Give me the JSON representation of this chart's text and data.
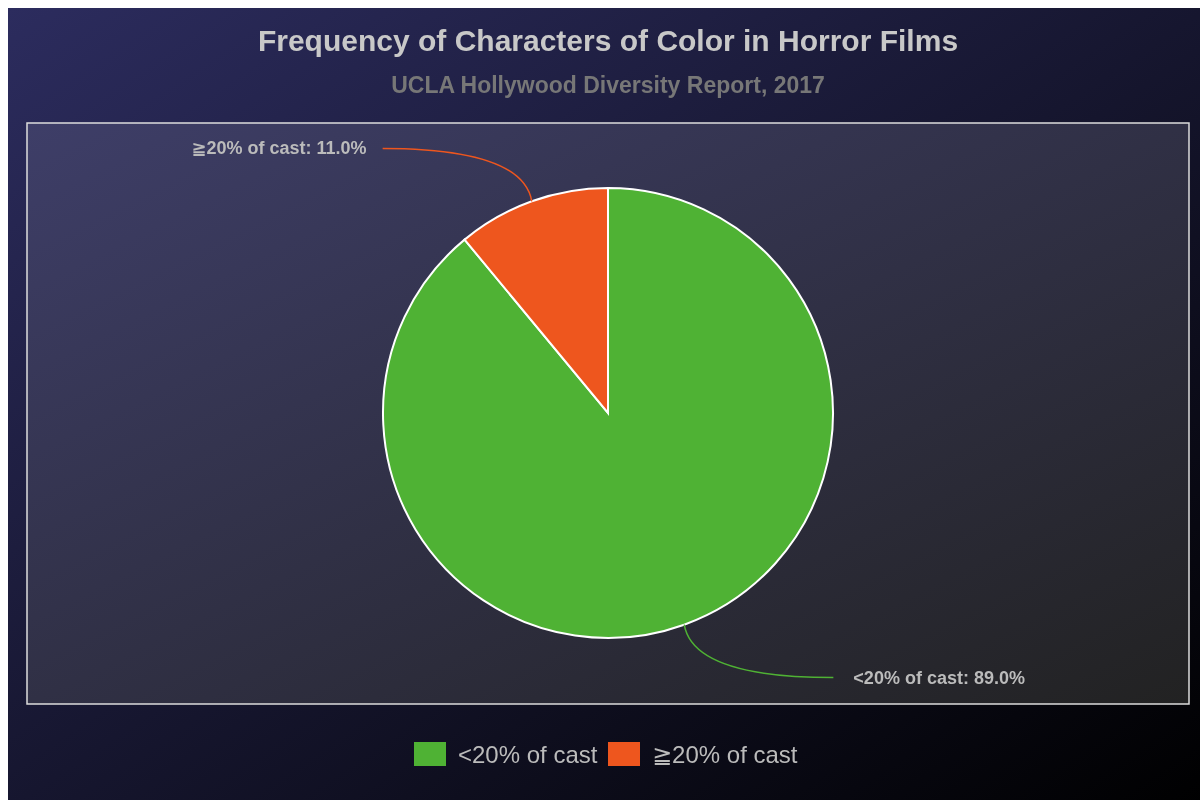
{
  "chart_data": {
    "type": "pie",
    "title": "Frequency of Characters of Color in Horror Films",
    "subtitle": "UCLA Hollywood Diversity Report, 2017",
    "categories": [
      "<20% of cast",
      "≧20% of cast"
    ],
    "values": [
      89,
      11
    ],
    "colors": [
      "#4fb234",
      "#ee561e"
    ],
    "value_labels": [
      "<20% of cast: 89.0%",
      "≧20% of cast: 11.0%"
    ],
    "legend": "bottom"
  }
}
